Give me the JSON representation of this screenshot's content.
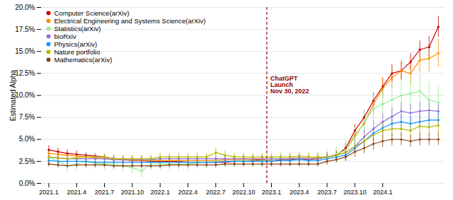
{
  "chart_data": {
    "type": "line",
    "categories": [
      "2021.1",
      null,
      null,
      "2021.4",
      null,
      null,
      "2021.7",
      null,
      null,
      "2021.10",
      null,
      null,
      "2022.1",
      null,
      null,
      "2022.4",
      null,
      null,
      "2022.7",
      null,
      null,
      "2022.10",
      null,
      null,
      "2023.1",
      null,
      null,
      "2023.4",
      null,
      null,
      "2023.7",
      null,
      null,
      "2023.10",
      null,
      null,
      "2024.1",
      null,
      null,
      null,
      null,
      null,
      null
    ],
    "ylabel": "Estimated Alpha",
    "series": [
      {
        "name": "Computer Science(arXiv)",
        "color": "#cc0000",
        "values": [
          0.038,
          0.036,
          0.034,
          0.033,
          0.032,
          0.031,
          0.03,
          0.028,
          0.027,
          0.026,
          0.026,
          0.025,
          0.025,
          0.025,
          0.025,
          0.024,
          0.024,
          0.024,
          0.024,
          0.024,
          0.025,
          0.025,
          0.026,
          0.027,
          0.026,
          0.027,
          0.027,
          0.028,
          0.027,
          0.028,
          0.03,
          0.032,
          0.04,
          0.06,
          0.075,
          0.094,
          0.11,
          0.125,
          0.128,
          0.138,
          0.152,
          0.155,
          0.178
        ],
        "errors": [
          0.005,
          0.004,
          0.004,
          0.004,
          0.003,
          0.003,
          0.003,
          0.003,
          0.003,
          0.003,
          0.003,
          0.003,
          0.003,
          0.003,
          0.003,
          0.003,
          0.003,
          0.003,
          0.003,
          0.003,
          0.003,
          0.003,
          0.003,
          0.003,
          0.003,
          0.003,
          0.003,
          0.003,
          0.003,
          0.003,
          0.004,
          0.005,
          0.006,
          0.007,
          0.008,
          0.009,
          0.01,
          0.01,
          0.01,
          0.01,
          0.01,
          0.012,
          0.012
        ]
      },
      {
        "name": "Electrical Engineering and Systems Science(arXiv)",
        "color": "#ff8c00",
        "values": [
          0.034,
          0.033,
          0.032,
          0.031,
          0.03,
          0.029,
          0.028,
          0.027,
          0.027,
          0.026,
          0.026,
          0.026,
          0.026,
          0.026,
          0.026,
          0.026,
          0.026,
          0.026,
          0.026,
          0.027,
          0.027,
          0.027,
          0.027,
          0.028,
          0.028,
          0.028,
          0.028,
          0.029,
          0.028,
          0.029,
          0.03,
          0.033,
          0.038,
          0.055,
          0.068,
          0.09,
          0.108,
          0.12,
          0.128,
          0.125,
          0.14,
          0.142,
          0.148
        ],
        "errors": [
          0.005,
          0.004,
          0.004,
          0.004,
          0.004,
          0.004,
          0.004,
          0.004,
          0.004,
          0.004,
          0.004,
          0.004,
          0.004,
          0.004,
          0.004,
          0.004,
          0.004,
          0.004,
          0.004,
          0.004,
          0.004,
          0.004,
          0.004,
          0.004,
          0.004,
          0.004,
          0.004,
          0.004,
          0.004,
          0.004,
          0.005,
          0.005,
          0.006,
          0.008,
          0.01,
          0.012,
          0.012,
          0.012,
          0.012,
          0.014,
          0.014,
          0.015,
          0.016
        ]
      },
      {
        "name": "Statistics(arXiv)",
        "color": "#90ee90",
        "values": [
          0.03,
          0.025,
          0.02,
          0.022,
          0.025,
          0.023,
          0.022,
          0.022,
          0.02,
          0.018,
          0.014,
          0.022,
          0.022,
          0.022,
          0.022,
          0.022,
          0.023,
          0.024,
          0.025,
          0.025,
          0.025,
          0.026,
          0.025,
          0.026,
          0.026,
          0.028,
          0.028,
          0.028,
          0.028,
          0.028,
          0.03,
          0.033,
          0.038,
          0.052,
          0.07,
          0.085,
          0.09,
          0.095,
          0.1,
          0.102,
          0.105,
          0.095,
          0.092
        ],
        "errors": [
          0.008,
          0.007,
          0.008,
          0.007,
          0.007,
          0.007,
          0.007,
          0.007,
          0.007,
          0.007,
          0.008,
          0.007,
          0.007,
          0.007,
          0.007,
          0.007,
          0.007,
          0.007,
          0.007,
          0.007,
          0.007,
          0.007,
          0.007,
          0.007,
          0.007,
          0.008,
          0.008,
          0.008,
          0.008,
          0.008,
          0.009,
          0.009,
          0.01,
          0.012,
          0.014,
          0.015,
          0.016,
          0.017,
          0.018,
          0.018,
          0.018,
          0.02,
          0.02
        ]
      },
      {
        "name": "bioRxiv",
        "color": "#9370db",
        "values": [
          0.03,
          0.029,
          0.028,
          0.028,
          0.028,
          0.028,
          0.028,
          0.027,
          0.027,
          0.027,
          0.027,
          0.027,
          0.028,
          0.028,
          0.028,
          0.028,
          0.028,
          0.028,
          0.028,
          0.028,
          0.028,
          0.028,
          0.028,
          0.028,
          0.028,
          0.028,
          0.028,
          0.029,
          0.028,
          0.028,
          0.03,
          0.032,
          0.035,
          0.042,
          0.053,
          0.062,
          0.07,
          0.076,
          0.082,
          0.08,
          0.082,
          0.083,
          0.082
        ],
        "errors": [
          0.004,
          0.004,
          0.004,
          0.004,
          0.004,
          0.004,
          0.004,
          0.004,
          0.004,
          0.004,
          0.004,
          0.004,
          0.004,
          0.004,
          0.004,
          0.004,
          0.004,
          0.004,
          0.004,
          0.004,
          0.004,
          0.004,
          0.004,
          0.004,
          0.004,
          0.004,
          0.004,
          0.004,
          0.004,
          0.004,
          0.005,
          0.005,
          0.006,
          0.007,
          0.008,
          0.009,
          0.009,
          0.01,
          0.01,
          0.01,
          0.01,
          0.01,
          0.01
        ]
      },
      {
        "name": "Physics(arXiv)",
        "color": "#1e90ff",
        "values": [
          0.026,
          0.025,
          0.025,
          0.025,
          0.025,
          0.024,
          0.024,
          0.024,
          0.024,
          0.024,
          0.024,
          0.024,
          0.024,
          0.024,
          0.024,
          0.024,
          0.024,
          0.024,
          0.024,
          0.025,
          0.025,
          0.025,
          0.025,
          0.025,
          0.025,
          0.026,
          0.026,
          0.027,
          0.026,
          0.026,
          0.028,
          0.03,
          0.032,
          0.04,
          0.048,
          0.057,
          0.063,
          0.068,
          0.07,
          0.068,
          0.07,
          0.072,
          0.072
        ],
        "errors": [
          0.003,
          0.003,
          0.003,
          0.003,
          0.003,
          0.003,
          0.003,
          0.003,
          0.003,
          0.003,
          0.003,
          0.003,
          0.003,
          0.003,
          0.003,
          0.003,
          0.003,
          0.003,
          0.003,
          0.003,
          0.003,
          0.003,
          0.003,
          0.003,
          0.003,
          0.003,
          0.003,
          0.003,
          0.003,
          0.003,
          0.004,
          0.004,
          0.005,
          0.006,
          0.007,
          0.007,
          0.008,
          0.008,
          0.008,
          0.008,
          0.008,
          0.008,
          0.008
        ]
      },
      {
        "name": "Nature portfolio",
        "color": "#b8b800",
        "values": [
          0.03,
          0.029,
          0.028,
          0.029,
          0.03,
          0.03,
          0.03,
          0.028,
          0.028,
          0.028,
          0.028,
          0.028,
          0.03,
          0.03,
          0.03,
          0.03,
          0.03,
          0.03,
          0.035,
          0.032,
          0.03,
          0.03,
          0.03,
          0.03,
          0.03,
          0.03,
          0.03,
          0.031,
          0.03,
          0.03,
          0.03,
          0.032,
          0.035,
          0.042,
          0.048,
          0.055,
          0.06,
          0.062,
          0.062,
          0.06,
          0.065,
          0.064,
          0.066
        ],
        "errors": [
          0.004,
          0.004,
          0.004,
          0.004,
          0.004,
          0.004,
          0.004,
          0.004,
          0.004,
          0.004,
          0.004,
          0.004,
          0.004,
          0.004,
          0.004,
          0.004,
          0.004,
          0.004,
          0.005,
          0.005,
          0.004,
          0.004,
          0.004,
          0.004,
          0.004,
          0.004,
          0.004,
          0.004,
          0.004,
          0.004,
          0.005,
          0.005,
          0.006,
          0.007,
          0.008,
          0.009,
          0.009,
          0.009,
          0.009,
          0.009,
          0.01,
          0.01,
          0.01
        ]
      },
      {
        "name": "Mathematics(arXiv)",
        "color": "#8b4513",
        "values": [
          0.022,
          0.021,
          0.02,
          0.021,
          0.021,
          0.021,
          0.021,
          0.02,
          0.02,
          0.02,
          0.02,
          0.02,
          0.02,
          0.021,
          0.021,
          0.021,
          0.021,
          0.021,
          0.021,
          0.022,
          0.022,
          0.022,
          0.022,
          0.022,
          0.022,
          0.022,
          0.022,
          0.022,
          0.022,
          0.022,
          0.025,
          0.027,
          0.03,
          0.036,
          0.04,
          0.045,
          0.048,
          0.05,
          0.05,
          0.048,
          0.05,
          0.05,
          0.05
        ],
        "errors": [
          0.003,
          0.003,
          0.003,
          0.003,
          0.003,
          0.003,
          0.003,
          0.003,
          0.003,
          0.003,
          0.003,
          0.003,
          0.003,
          0.003,
          0.003,
          0.003,
          0.003,
          0.003,
          0.003,
          0.003,
          0.003,
          0.003,
          0.003,
          0.003,
          0.003,
          0.003,
          0.003,
          0.003,
          0.003,
          0.003,
          0.004,
          0.004,
          0.005,
          0.006,
          0.006,
          0.007,
          0.007,
          0.007,
          0.007,
          0.007,
          0.007,
          0.007,
          0.007
        ]
      }
    ],
    "ylim": [
      0.0,
      0.2
    ],
    "yticks": [
      {
        "value": 0.0,
        "label": "0.0%"
      },
      {
        "value": 0.025,
        "label": "2.5%"
      },
      {
        "value": 0.05,
        "label": "5.0%"
      },
      {
        "value": 0.075,
        "label": "7.5%"
      },
      {
        "value": 0.1,
        "label": "10.0%"
      },
      {
        "value": 0.125,
        "label": "12.5%"
      },
      {
        "value": 0.15,
        "label": "15.0%"
      },
      {
        "value": 0.175,
        "label": "17.5%"
      },
      {
        "value": 0.2,
        "label": "20.0%"
      }
    ],
    "grid": true,
    "legend": "upper left",
    "marker": "circle",
    "annotations": [
      {
        "type": "vline",
        "x": 23.5,
        "y": 0.112,
        "text": "ChatGPT\nLaunch\nNov 30, 2022",
        "color": "#8b0000",
        "line_style": "dashed"
      }
    ]
  }
}
